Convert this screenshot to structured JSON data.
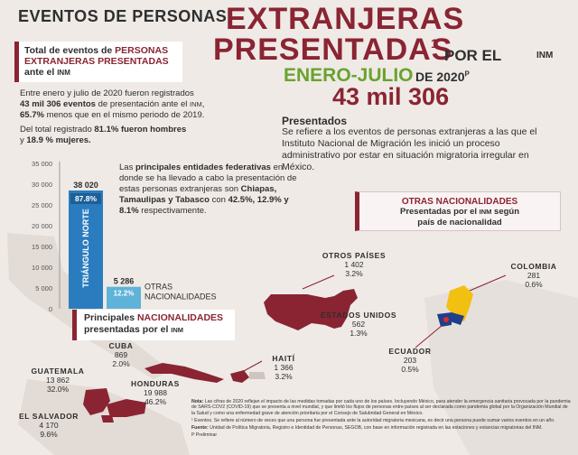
{
  "header": {
    "line1": "EVENTOS DE PERSONAS",
    "big1": "EXTRANJERAS",
    "big2": "PRESENTADAS",
    "sup": "1",
    "por_el": "POR EL",
    "inm": "INM",
    "period": "ENERO-JULIO",
    "de_year": "DE 2020",
    "year_sup": "P",
    "total": "43 mil 306"
  },
  "summary_box": {
    "part1": "Total de eventos de",
    "part2": "PERSONAS",
    "part3": "EXTRANJERAS PRESENTADAS",
    "part4": "ante el",
    "part5": "INM"
  },
  "intro": {
    "p1_a": "Entre enero y julio de 2020 fueron registrados",
    "p1_b": "43 mil 306 eventos",
    "p1_c": "de presentación ante el",
    "p1_d": "INM",
    "p1_e": ",",
    "p1_f": "65.7%",
    "p1_g": "menos que en el mismo periodo de 2019.",
    "p2_a": "Del total registrado",
    "p2_b": "81.1% fueron hombres",
    "p2_c": "y",
    "p2_d": "18.9 % mujeres."
  },
  "definition": {
    "title": "Presentados",
    "text": "Se refiere a los eventos de personas extranjeras a las que el Instituto Nacional de Migración les inició un proceso administrativo por estar en situación migratoria irregular en México."
  },
  "states_text": {
    "a": "Las",
    "b": "principales entidades federativas",
    "c": "en donde se ha llevado a cabo la presentación de estas personas extranjeras son",
    "d": "Chiapas, Tamaulipas y Tabasco",
    "e": "con",
    "f": "42.5%, 12.9% y 8.1%",
    "g": "respectivamente."
  },
  "other_box": {
    "title": "OTRAS NACIONALIDADES",
    "line2a": "Presentadas por el",
    "line2b": "INM",
    "line2c": "según",
    "line3": "país de nacionalidad"
  },
  "nat_box": {
    "a": "Principales",
    "b": "NACIONALIDADES",
    "c": "presentadas por el",
    "d": "INM"
  },
  "countries": [
    {
      "name": "OTROS PAÍSES",
      "value": "1 402",
      "pct": "3.2%"
    },
    {
      "name": "COLOMBIA",
      "value": "281",
      "pct": "0.6%"
    },
    {
      "name": "ESTADOS UNIDOS",
      "value": "562",
      "pct": "1.3%"
    },
    {
      "name": "ECUADOR",
      "value": "203",
      "pct": "0.5%"
    },
    {
      "name": "CUBA",
      "value": "869",
      "pct": "2.0%"
    },
    {
      "name": "HAITÍ",
      "value": "1 366",
      "pct": "3.2%"
    },
    {
      "name": "GUATEMALA",
      "value": "13 862",
      "pct": "32.0%"
    },
    {
      "name": "HONDURAS",
      "value": "19 988",
      "pct": "46.2%"
    },
    {
      "name": "EL SALVADOR",
      "value": "4 170",
      "pct": "9.6%"
    }
  ],
  "notes": {
    "n1_label": "Nota:",
    "n1": "Las cifras de 2020 reflejan el impacto de las medidas tomadas por cada uno de los países. Incluyendo México, para atender la emergencia sanitaria provocada por la pandemia de SARS-COV2 (COVID-19) que se presenta a nivel mundial, y que limitó los flujos de personas entre países al ser declarada como pandemia global por la Organización Mundial de la Salud y como una enfermedad grave de atención prioritaria por el Consejo de Salubridad General en México.",
    "n2": "¹ Eventos. Se refiere al número de veces que una persona fue presentada ante la autoridad migratoria mexicana, es decir una persona puede sumar varios eventos en un año.",
    "n3_label": "Fuente:",
    "n3": "Unidad de Política Migratoria, Registro e Identidad de Personas, SEGOB, con base en información registrada en las estaciones y estancias migratorias del INM.",
    "n4": "P Preliminar"
  },
  "colors": {
    "maroon": "#8a2433",
    "green": "#6aa32e",
    "bar_blue": "#2a7cbf",
    "bar_teal": "#5fb3d8"
  },
  "chart_data": {
    "type": "bar",
    "categories": [
      "TRIÁNGULO NORTE",
      "OTRAS NACIONALIDADES"
    ],
    "values": [
      38020,
      5286
    ],
    "value_labels": [
      "38 020",
      "5 286"
    ],
    "pct_labels": [
      "87.8%",
      "12.2%"
    ],
    "ylim": [
      0,
      35000
    ],
    "yticks": [
      0,
      5000,
      10000,
      15000,
      20000,
      25000,
      30000,
      35000
    ],
    "ytick_labels": [
      "0",
      "5 000",
      "10 000",
      "15 000",
      "20 000",
      "25 000",
      "30 000",
      "35 000"
    ],
    "other_label_1": "OTRAS",
    "other_label_2": "NACIONALIDADES"
  }
}
